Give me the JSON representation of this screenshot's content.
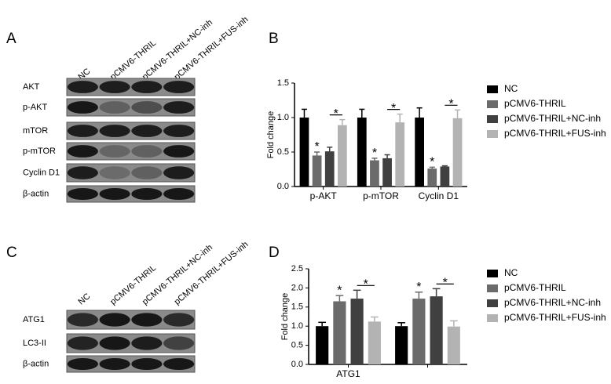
{
  "panel_labels": [
    "A",
    "B",
    "C",
    "D"
  ],
  "blots": [
    {
      "lanes": [
        "NC",
        "pCMV6-THRIL",
        "pCMV6-THRIL+NC-inh",
        "pCMV6-THRIL+FUS-inh"
      ],
      "rows": [
        "AKT",
        "p-AKT",
        "mTOR",
        "p-mTOR",
        "Cyclin D1",
        "β-actin"
      ]
    },
    {
      "lanes": [
        "NC",
        "pCMV6-THRIL",
        "pCMV6-THRIL+NC-inh",
        "pCMV6-THRIL+FUS-inh"
      ],
      "rows": [
        "ATG1",
        "LC3-II",
        "β-actin"
      ]
    }
  ],
  "chart_data": [
    {
      "type": "bar",
      "ylabel": "Fold change",
      "categories": [
        "p-AKT",
        "p-mTOR",
        "Cyclin D1"
      ],
      "series": [
        {
          "name": "NC",
          "color": "#000000",
          "values": [
            1.0,
            1.0,
            1.0
          ],
          "errors": [
            0.12,
            0.12,
            0.14
          ]
        },
        {
          "name": "pCMV6-THRIL",
          "color": "#6b6b6b",
          "values": [
            0.45,
            0.38,
            0.26
          ],
          "errors": [
            0.05,
            0.03,
            0.02
          ]
        },
        {
          "name": "pCMV6-THRIL+NC-inh",
          "color": "#404040",
          "values": [
            0.51,
            0.41,
            0.29
          ],
          "errors": [
            0.06,
            0.05,
            0.01
          ]
        },
        {
          "name": "pCMV6-THRIL+FUS-inh",
          "color": "#b3b3b3",
          "values": [
            0.89,
            0.93,
            0.99
          ],
          "errors": [
            0.08,
            0.12,
            0.12
          ]
        }
      ],
      "annotations": [
        {
          "text": "*",
          "category": 0,
          "series": 1
        },
        {
          "text": "*",
          "category": 0,
          "series": 3
        },
        {
          "text": "*",
          "category": 1,
          "series": 1
        },
        {
          "text": "*",
          "category": 1,
          "series": 3
        },
        {
          "text": "*",
          "category": 2,
          "series": 1
        },
        {
          "text": "*",
          "category": 2,
          "series": 3
        }
      ],
      "ylim": [
        0,
        1.5
      ],
      "yticks": [
        {
          "value": 0,
          "label": "0.0"
        },
        0.5,
        {
          "value": 1,
          "label": "1.0"
        },
        1.5
      ]
    },
    {
      "type": "bar",
      "ylabel": "Fold change",
      "categories": [
        "ATG1",
        null
      ],
      "series": [
        {
          "name": "NC",
          "color": "#000000",
          "values": [
            1.0,
            1.0
          ],
          "errors": [
            0.1,
            0.09
          ]
        },
        {
          "name": "pCMV6-THRIL",
          "color": "#6b6b6b",
          "values": [
            1.65,
            1.72
          ],
          "errors": [
            0.15,
            0.17
          ]
        },
        {
          "name": "pCMV6-THRIL+NC-inh",
          "color": "#404040",
          "values": [
            1.72,
            1.78
          ],
          "errors": [
            0.22,
            0.2
          ]
        },
        {
          "name": "pCMV6-THRIL+FUS-inh",
          "color": "#b3b3b3",
          "values": [
            1.12,
            0.99
          ],
          "errors": [
            0.12,
            0.15
          ]
        }
      ],
      "annotations": [
        {
          "text": "*",
          "category": 0,
          "series": 1
        },
        {
          "text": "*",
          "category": 0,
          "series": 3
        },
        {
          "text": "*",
          "category": 1,
          "series": 1
        },
        {
          "text": "*",
          "category": 1,
          "series": 3
        }
      ],
      "ylim": [
        0,
        2.5
      ],
      "yticks": [
        {
          "value": 0,
          "label": "0.0"
        },
        0.5,
        {
          "value": 1,
          "label": "1.0"
        },
        1.5,
        {
          "value": 2,
          "label": "2.0"
        },
        2.5
      ]
    }
  ]
}
